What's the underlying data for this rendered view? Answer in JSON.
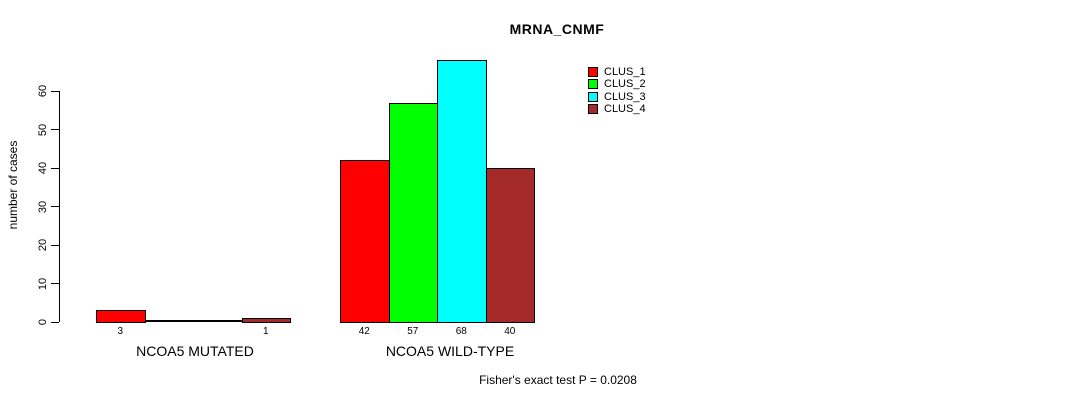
{
  "chart_data": {
    "type": "bar",
    "title": "MRNA_CNMF",
    "xlabel": "",
    "ylabel": "number of cases",
    "categories": [
      "NCOA5 MUTATED",
      "NCOA5 WILD-TYPE"
    ],
    "series": [
      {
        "name": "CLUS_1",
        "color": "#FF0000",
        "values": [
          3,
          42
        ]
      },
      {
        "name": "CLUS_2",
        "color": "#00FF00",
        "values": [
          0,
          57
        ]
      },
      {
        "name": "CLUS_3",
        "color": "#00FFFF",
        "values": [
          0,
          68
        ]
      },
      {
        "name": "CLUS_4",
        "color": "#A52A2A",
        "values": [
          1,
          40
        ]
      }
    ],
    "y_ticks": [
      0,
      10,
      20,
      30,
      40,
      50,
      60
    ],
    "axis_range": [
      0,
      60
    ],
    "grid": false,
    "legend_position": "top-right",
    "bar_value_labels": "shown below each bar, only for nonzero values",
    "annotation": "Fisher's exact test P = 0.0208"
  }
}
